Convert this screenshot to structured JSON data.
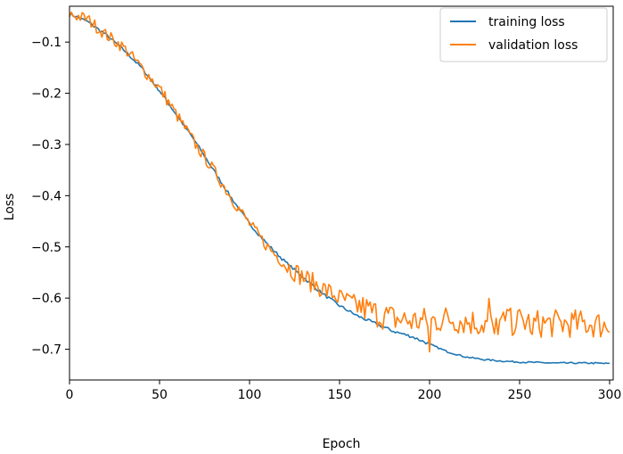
{
  "chart_data": {
    "type": "line",
    "title": "",
    "xlabel": "Epoch",
    "ylabel": "Loss",
    "xlim": [
      0,
      302
    ],
    "ylim": [
      -0.76,
      -0.03
    ],
    "x_ticks": [
      0,
      50,
      100,
      150,
      200,
      250,
      300
    ],
    "x_tick_labels": [
      "0",
      "50",
      "100",
      "150",
      "200",
      "250",
      "300"
    ],
    "y_ticks": [
      -0.1,
      -0.2,
      -0.3,
      -0.4,
      -0.5,
      -0.6,
      -0.7
    ],
    "y_tick_labels": [
      "−0.1",
      "−0.2",
      "−0.3",
      "−0.4",
      "−0.5",
      "−0.6",
      "−0.7"
    ],
    "grid": false,
    "legend_position": "top-right",
    "series": [
      {
        "name": "training loss",
        "color": "#1f77b4",
        "anchors": [
          [
            0,
            -0.045
          ],
          [
            10,
            -0.06
          ],
          [
            20,
            -0.085
          ],
          [
            30,
            -0.115
          ],
          [
            40,
            -0.15
          ],
          [
            50,
            -0.195
          ],
          [
            60,
            -0.245
          ],
          [
            70,
            -0.295
          ],
          [
            80,
            -0.35
          ],
          [
            90,
            -0.405
          ],
          [
            100,
            -0.455
          ],
          [
            110,
            -0.495
          ],
          [
            120,
            -0.53
          ],
          [
            130,
            -0.56
          ],
          [
            140,
            -0.59
          ],
          [
            150,
            -0.615
          ],
          [
            160,
            -0.635
          ],
          [
            170,
            -0.65
          ],
          [
            180,
            -0.665
          ],
          [
            190,
            -0.675
          ],
          [
            200,
            -0.69
          ],
          [
            210,
            -0.705
          ],
          [
            220,
            -0.715
          ],
          [
            230,
            -0.72
          ],
          [
            240,
            -0.723
          ],
          [
            250,
            -0.725
          ],
          [
            260,
            -0.726
          ],
          [
            270,
            -0.727
          ],
          [
            280,
            -0.727
          ],
          [
            290,
            -0.727
          ],
          [
            300,
            -0.728
          ]
        ]
      },
      {
        "name": "validation loss",
        "color": "#ff7f0e",
        "anchors": [
          [
            0,
            -0.045
          ],
          [
            10,
            -0.055
          ],
          [
            20,
            -0.085
          ],
          [
            30,
            -0.11
          ],
          [
            40,
            -0.15
          ],
          [
            50,
            -0.19
          ],
          [
            60,
            -0.245
          ],
          [
            70,
            -0.3
          ],
          [
            80,
            -0.35
          ],
          [
            90,
            -0.405
          ],
          [
            100,
            -0.455
          ],
          [
            110,
            -0.5
          ],
          [
            120,
            -0.535
          ],
          [
            130,
            -0.56
          ],
          [
            140,
            -0.58
          ],
          [
            150,
            -0.6
          ],
          [
            160,
            -0.615
          ],
          [
            170,
            -0.63
          ],
          [
            180,
            -0.64
          ],
          [
            190,
            -0.645
          ],
          [
            200,
            -0.645
          ],
          [
            210,
            -0.64
          ],
          [
            220,
            -0.645
          ],
          [
            230,
            -0.65
          ],
          [
            240,
            -0.65
          ],
          [
            250,
            -0.645
          ],
          [
            260,
            -0.65
          ],
          [
            270,
            -0.65
          ],
          [
            280,
            -0.65
          ],
          [
            290,
            -0.65
          ],
          [
            300,
            -0.655
          ]
        ]
      }
    ]
  }
}
